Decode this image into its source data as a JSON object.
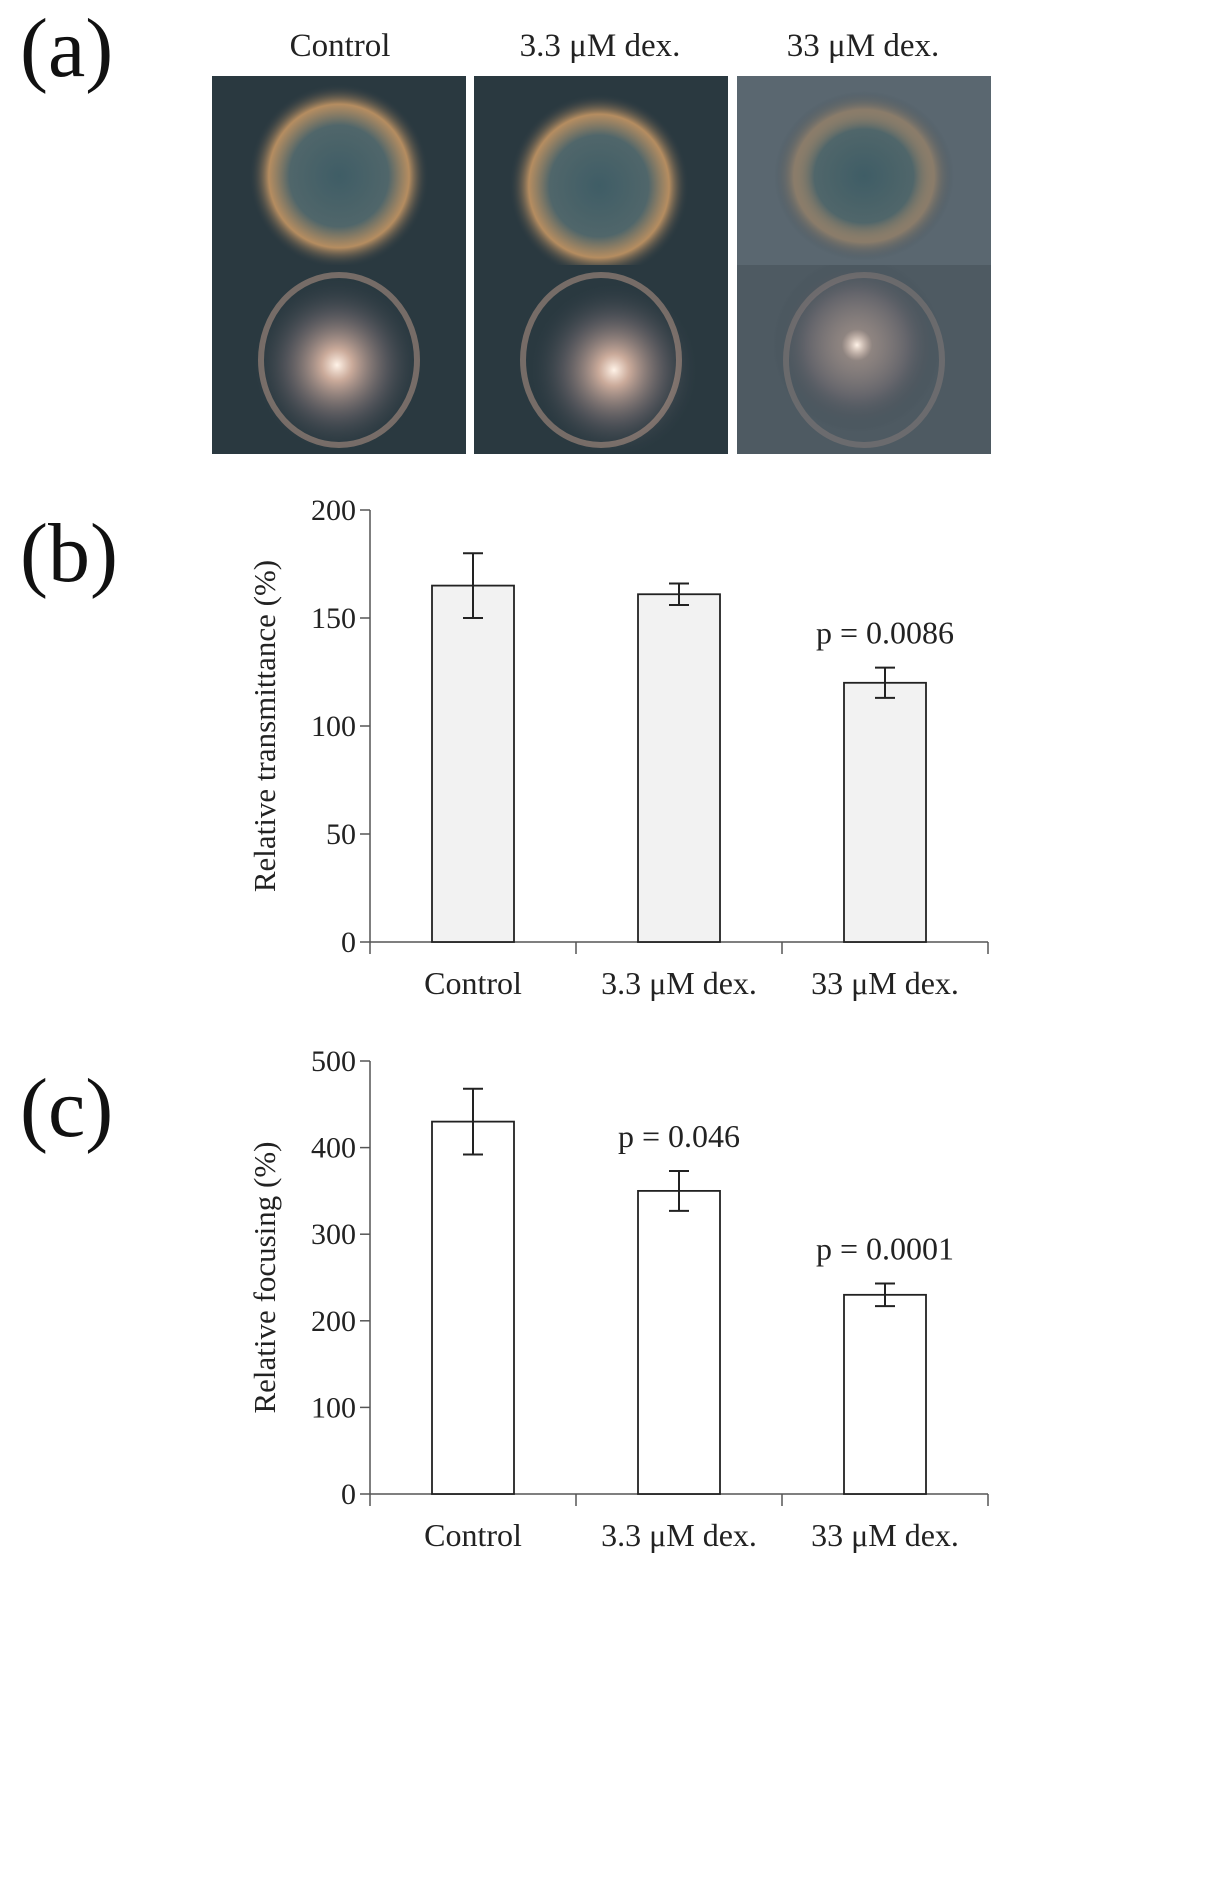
{
  "panels": {
    "a": {
      "letter": "(a)",
      "columns": [
        "Control",
        "3.3 μM dex.",
        "33 μM dex."
      ]
    },
    "b": {
      "letter": "(b)"
    },
    "c": {
      "letter": "(c)"
    }
  },
  "chart_data": [
    {
      "type": "bar",
      "panel": "b",
      "categories": [
        "Control",
        "3.3 μM dex.",
        "33 μM dex."
      ],
      "values": [
        165,
        161,
        120
      ],
      "errors": [
        15,
        5,
        7
      ],
      "annotations": [
        "",
        "",
        "p = 0.0086"
      ],
      "ylabel": "Relative transmittance (%)",
      "ylim": [
        0,
        200
      ],
      "yticks": [
        0,
        50,
        100,
        150,
        200
      ],
      "bar_color": "#f2f2f2"
    },
    {
      "type": "bar",
      "panel": "c",
      "categories": [
        "Control",
        "3.3 μM dex.",
        "33 μM dex."
      ],
      "values": [
        430,
        350,
        230
      ],
      "errors": [
        38,
        23,
        13
      ],
      "annotations": [
        "",
        "p = 0.046",
        "p = 0.0001"
      ],
      "ylabel": "Relative focusing (%)",
      "ylim": [
        0,
        500
      ],
      "yticks": [
        0,
        100,
        200,
        300,
        400,
        500
      ],
      "bar_color": "#ffffff"
    }
  ]
}
